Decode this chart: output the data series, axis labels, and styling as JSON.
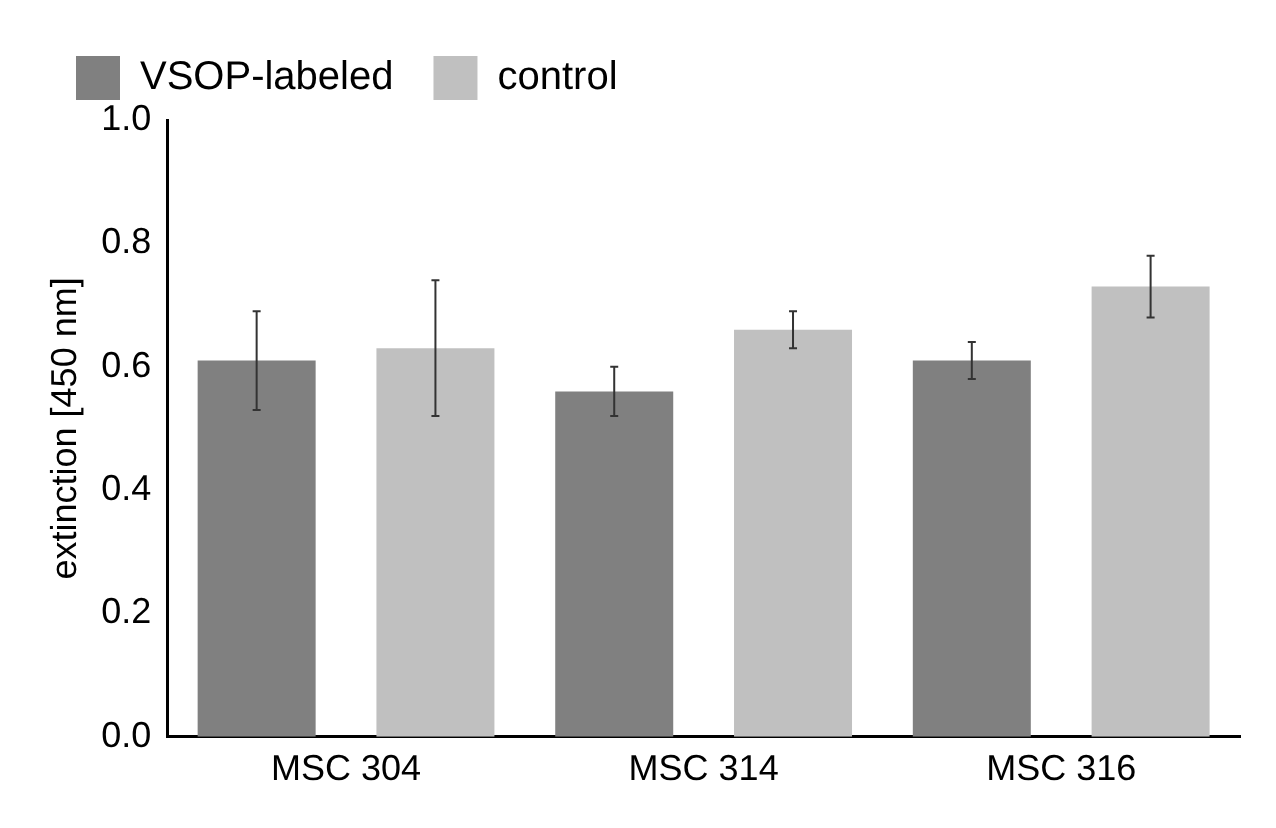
{
  "chart_data": {
    "type": "bar",
    "ylabel": "extinction [450 nm]",
    "categories": [
      "MSC 304",
      "MSC 314",
      "MSC 316"
    ],
    "series": [
      {
        "name": "VSOP-labeled",
        "color": "#808080",
        "values": [
          0.61,
          0.56,
          0.61
        ],
        "errors": [
          0.08,
          0.04,
          0.03
        ]
      },
      {
        "name": "control",
        "color": "#c0c0c0",
        "values": [
          0.63,
          0.66,
          0.73
        ],
        "errors": [
          0.11,
          0.03,
          0.05
        ]
      }
    ],
    "ylim": [
      0,
      1
    ],
    "yticks": [
      {
        "value": 0,
        "label": "0.0"
      },
      {
        "value": 0.2,
        "label": "0.2"
      },
      {
        "value": 0.4,
        "label": "0.4"
      },
      {
        "value": 0.6,
        "label": "0.6"
      },
      {
        "value": 0.8,
        "label": "0.8"
      },
      {
        "value": 1,
        "label": "1.0"
      }
    ],
    "grid": false,
    "legend": "top"
  }
}
